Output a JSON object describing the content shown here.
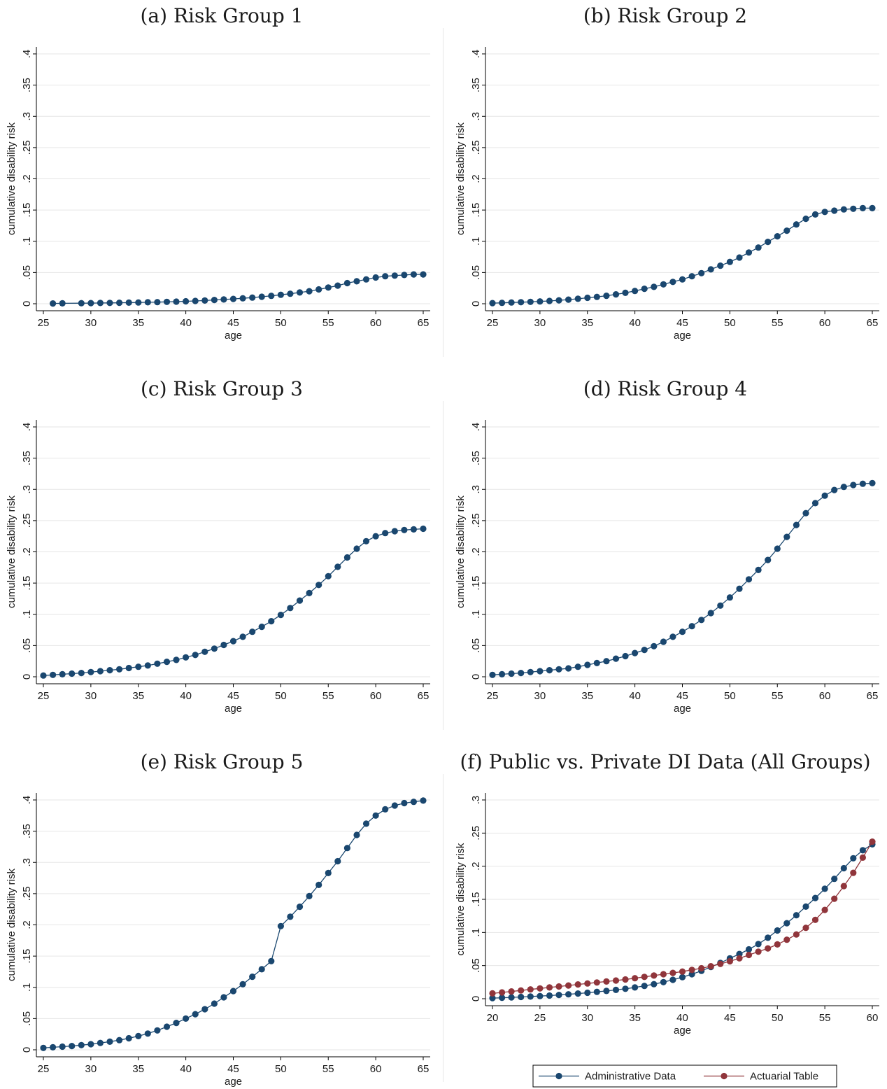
{
  "colors": {
    "admin": "#1a476f",
    "actuarial": "#90353b",
    "grid": "#e6e6e6",
    "axis": "#000000"
  },
  "legend": {
    "admin_label": "Administrative Data",
    "actuarial_label": "Actuarial Table"
  },
  "chart_data": [
    {
      "type": "line",
      "title": "(a) Risk Group 1",
      "xlabel": "age",
      "ylabel": "cumulative disability risk",
      "xlim": [
        25,
        65
      ],
      "ylim": [
        0,
        0.4
      ],
      "xticks": [
        "25",
        "30",
        "35",
        "40",
        "45",
        "50",
        "55",
        "60",
        "65"
      ],
      "yticks": [
        "0",
        ".05",
        ".1",
        ".15",
        ".2",
        ".25",
        ".3",
        ".35",
        ".4"
      ],
      "series": [
        {
          "x": [
            26,
            27,
            29,
            30,
            31,
            32,
            33,
            34,
            35,
            36,
            37,
            38,
            39,
            40,
            41,
            42,
            43,
            44,
            45,
            46,
            47,
            48,
            49,
            50,
            51,
            52,
            53,
            54,
            55,
            56,
            57,
            58,
            59,
            60,
            61,
            62,
            63,
            64,
            65
          ],
          "y": [
            0.0005,
            0.0007,
            0.0009,
            0.001,
            0.0012,
            0.0014,
            0.0016,
            0.0018,
            0.002,
            0.0023,
            0.0026,
            0.003,
            0.0034,
            0.0039,
            0.0045,
            0.0052,
            0.006,
            0.0068,
            0.0077,
            0.0087,
            0.0099,
            0.0112,
            0.0127,
            0.0143,
            0.016,
            0.018,
            0.02,
            0.023,
            0.026,
            0.029,
            0.033,
            0.036,
            0.039,
            0.042,
            0.044,
            0.045,
            0.046,
            0.047,
            0.047
          ]
        }
      ]
    },
    {
      "type": "line",
      "title": "(b) Risk Group 2",
      "xlabel": "age",
      "ylabel": "cumulative disability risk",
      "xlim": [
        25,
        65
      ],
      "ylim": [
        0,
        0.4
      ],
      "xticks": [
        "25",
        "30",
        "35",
        "40",
        "45",
        "50",
        "55",
        "60",
        "65"
      ],
      "yticks": [
        "0",
        ".05",
        ".1",
        ".15",
        ".2",
        ".25",
        ".3",
        ".35",
        ".4"
      ],
      "series": [
        {
          "x": [
            25,
            26,
            27,
            28,
            29,
            30,
            31,
            32,
            33,
            34,
            35,
            36,
            37,
            38,
            39,
            40,
            41,
            42,
            43,
            44,
            45,
            46,
            47,
            48,
            49,
            50,
            51,
            52,
            53,
            54,
            55,
            56,
            57,
            58,
            59,
            60,
            61,
            62,
            63,
            64,
            65
          ],
          "y": [
            0.001,
            0.0015,
            0.002,
            0.0025,
            0.003,
            0.0037,
            0.0045,
            0.0055,
            0.0066,
            0.008,
            0.0095,
            0.011,
            0.0128,
            0.015,
            0.0175,
            0.0205,
            0.024,
            0.027,
            0.031,
            0.035,
            0.039,
            0.044,
            0.049,
            0.055,
            0.061,
            0.067,
            0.074,
            0.082,
            0.09,
            0.099,
            0.108,
            0.117,
            0.127,
            0.136,
            0.143,
            0.147,
            0.149,
            0.151,
            0.152,
            0.153,
            0.153
          ]
        }
      ]
    },
    {
      "type": "line",
      "title": "(c) Risk Group 3",
      "xlabel": "age",
      "ylabel": "cumulative disability risk",
      "xlim": [
        25,
        65
      ],
      "ylim": [
        0,
        0.4
      ],
      "xticks": [
        "25",
        "30",
        "35",
        "40",
        "45",
        "50",
        "55",
        "60",
        "65"
      ],
      "yticks": [
        "0",
        ".05",
        ".1",
        ".15",
        ".2",
        ".25",
        ".3",
        ".35",
        ".4"
      ],
      "series": [
        {
          "x": [
            25,
            26,
            27,
            28,
            29,
            30,
            31,
            32,
            33,
            34,
            35,
            36,
            37,
            38,
            39,
            40,
            41,
            42,
            43,
            44,
            45,
            46,
            47,
            48,
            49,
            50,
            51,
            52,
            53,
            54,
            55,
            56,
            57,
            58,
            59,
            60,
            61,
            62,
            63,
            64,
            65
          ],
          "y": [
            0.002,
            0.003,
            0.004,
            0.005,
            0.006,
            0.0075,
            0.009,
            0.0105,
            0.012,
            0.014,
            0.016,
            0.018,
            0.021,
            0.024,
            0.027,
            0.031,
            0.035,
            0.04,
            0.045,
            0.051,
            0.057,
            0.064,
            0.072,
            0.08,
            0.089,
            0.099,
            0.11,
            0.122,
            0.134,
            0.147,
            0.161,
            0.176,
            0.191,
            0.205,
            0.217,
            0.225,
            0.23,
            0.233,
            0.235,
            0.236,
            0.237
          ]
        }
      ]
    },
    {
      "type": "line",
      "title": "(d) Risk Group 4",
      "xlabel": "age",
      "ylabel": "cumulative disability risk",
      "xlim": [
        25,
        65
      ],
      "ylim": [
        0,
        0.4
      ],
      "xticks": [
        "25",
        "30",
        "35",
        "40",
        "45",
        "50",
        "55",
        "60",
        "65"
      ],
      "yticks": [
        "0",
        ".05",
        ".1",
        ".15",
        ".2",
        ".25",
        ".3",
        ".35",
        ".4"
      ],
      "series": [
        {
          "x": [
            25,
            26,
            27,
            28,
            29,
            30,
            31,
            32,
            33,
            34,
            35,
            36,
            37,
            38,
            39,
            40,
            41,
            42,
            43,
            44,
            45,
            46,
            47,
            48,
            49,
            50,
            51,
            52,
            53,
            54,
            55,
            56,
            57,
            58,
            59,
            60,
            61,
            62,
            63,
            64,
            65
          ],
          "y": [
            0.003,
            0.004,
            0.005,
            0.006,
            0.0075,
            0.009,
            0.0105,
            0.012,
            0.0135,
            0.016,
            0.019,
            0.022,
            0.025,
            0.029,
            0.033,
            0.038,
            0.043,
            0.049,
            0.056,
            0.064,
            0.072,
            0.081,
            0.091,
            0.102,
            0.114,
            0.127,
            0.141,
            0.156,
            0.171,
            0.187,
            0.205,
            0.224,
            0.243,
            0.262,
            0.278,
            0.29,
            0.299,
            0.304,
            0.307,
            0.309,
            0.31
          ]
        }
      ]
    },
    {
      "type": "line",
      "title": "(e) Risk Group 5",
      "xlabel": "age",
      "ylabel": "cumulative disability risk",
      "xlim": [
        25,
        65
      ],
      "ylim": [
        0,
        0.4
      ],
      "xticks": [
        "25",
        "30",
        "35",
        "40",
        "45",
        "50",
        "55",
        "60",
        "65"
      ],
      "yticks": [
        "0",
        ".05",
        ".1",
        ".15",
        ".2",
        ".25",
        ".3",
        ".35",
        ".4"
      ],
      "series": [
        {
          "x": [
            25,
            26,
            27,
            28,
            29,
            30,
            31,
            32,
            33,
            34,
            35,
            36,
            37,
            38,
            39,
            40,
            41,
            42,
            43,
            44,
            45,
            46,
            47,
            48,
            49,
            50,
            51,
            52,
            53,
            54,
            55,
            56,
            57,
            58,
            59,
            60,
            61,
            62,
            63,
            64,
            65
          ],
          "y": [
            0.003,
            0.004,
            0.005,
            0.006,
            0.0075,
            0.009,
            0.011,
            0.013,
            0.0155,
            0.0185,
            0.022,
            0.026,
            0.031,
            0.037,
            0.043,
            0.05,
            0.057,
            0.065,
            0.074,
            0.084,
            0.094,
            0.105,
            0.117,
            0.129,
            0.142,
            0.198,
            0.213,
            0.229,
            0.246,
            0.264,
            0.283,
            0.302,
            0.323,
            0.344,
            0.362,
            0.375,
            0.385,
            0.391,
            0.395,
            0.397,
            0.399
          ]
        }
      ]
    },
    {
      "type": "line",
      "title": "(f) Public vs. Private DI Data (All Groups)",
      "xlabel": "age",
      "ylabel": "cumulative disability risk",
      "xlim": [
        20,
        60
      ],
      "ylim": [
        0,
        0.3
      ],
      "xticks": [
        "20",
        "25",
        "30",
        "35",
        "40",
        "45",
        "50",
        "55",
        "60"
      ],
      "yticks": [
        "0",
        ".05",
        ".1",
        ".15",
        ".2",
        ".25",
        ".3"
      ],
      "legend": "bottom",
      "series": [
        {
          "name": "Administrative Data",
          "x": [
            20,
            21,
            22,
            23,
            24,
            25,
            26,
            27,
            28,
            29,
            30,
            31,
            32,
            33,
            34,
            35,
            36,
            37,
            38,
            39,
            40,
            41,
            42,
            43,
            44,
            45,
            46,
            47,
            48,
            49,
            50,
            51,
            52,
            53,
            54,
            55,
            56,
            57,
            58,
            59,
            60
          ],
          "y": [
            0.001,
            0.0015,
            0.002,
            0.0026,
            0.0033,
            0.004,
            0.0048,
            0.0057,
            0.0067,
            0.0078,
            0.009,
            0.0103,
            0.0117,
            0.0133,
            0.015,
            0.017,
            0.0193,
            0.022,
            0.025,
            0.0285,
            0.0325,
            0.037,
            0.042,
            0.048,
            0.054,
            0.061,
            0.0675,
            0.0745,
            0.0825,
            0.092,
            0.103,
            0.114,
            0.126,
            0.139,
            0.152,
            0.166,
            0.181,
            0.197,
            0.212,
            0.224,
            0.233
          ]
        },
        {
          "name": "Actuarial Table",
          "x": [
            20,
            21,
            22,
            23,
            24,
            25,
            26,
            27,
            28,
            29,
            30,
            31,
            32,
            33,
            34,
            35,
            36,
            37,
            38,
            39,
            40,
            41,
            42,
            43,
            44,
            45,
            46,
            47,
            48,
            49,
            50,
            51,
            52,
            53,
            54,
            55,
            56,
            57,
            58,
            59,
            60
          ],
          "y": [
            0.008,
            0.0095,
            0.011,
            0.0125,
            0.014,
            0.0155,
            0.017,
            0.0185,
            0.02,
            0.0215,
            0.023,
            0.0245,
            0.026,
            0.0275,
            0.029,
            0.031,
            0.033,
            0.035,
            0.037,
            0.039,
            0.041,
            0.0435,
            0.046,
            0.049,
            0.0525,
            0.0565,
            0.061,
            0.066,
            0.071,
            0.076,
            0.082,
            0.089,
            0.097,
            0.107,
            0.119,
            0.134,
            0.151,
            0.17,
            0.19,
            0.213,
            0.237
          ]
        }
      ]
    }
  ]
}
